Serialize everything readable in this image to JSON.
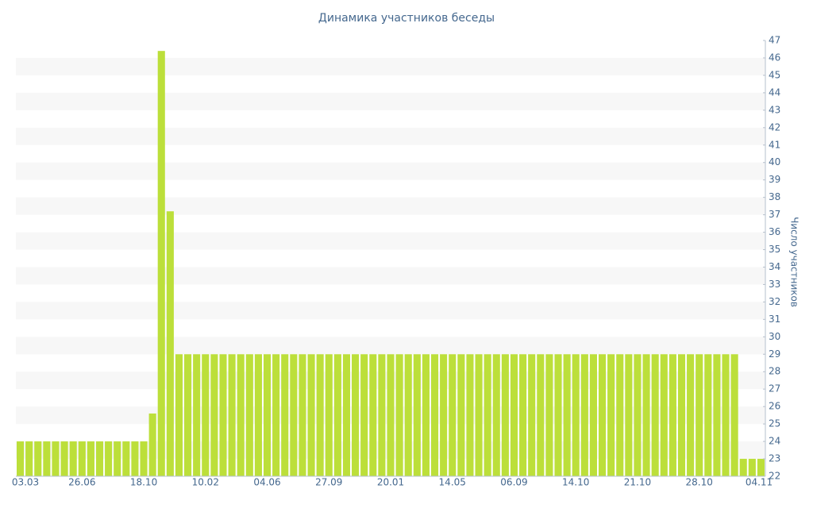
{
  "chart_data": {
    "type": "bar",
    "title": "Динамика участников беседы",
    "y_axis_label": "Число участников",
    "color": "#bcdf3a",
    "grid": true,
    "categories": [
      "03.03",
      null,
      null,
      null,
      null,
      null,
      null,
      "26.06",
      null,
      null,
      null,
      null,
      null,
      null,
      "18.10",
      null,
      null,
      null,
      null,
      null,
      null,
      "10.02",
      null,
      null,
      null,
      null,
      null,
      null,
      "04.06",
      null,
      null,
      null,
      null,
      null,
      null,
      "27.09",
      null,
      null,
      null,
      null,
      null,
      null,
      "20.01",
      null,
      null,
      null,
      null,
      null,
      null,
      "14.05",
      null,
      null,
      null,
      null,
      null,
      null,
      "06.09",
      null,
      null,
      null,
      null,
      null,
      null,
      "14.10",
      null,
      null,
      null,
      null,
      null,
      null,
      "21.10",
      null,
      null,
      null,
      null,
      null,
      null,
      "28.10",
      null,
      null,
      null,
      null,
      null,
      null,
      "04.11"
    ],
    "values": [
      24,
      24,
      24,
      24,
      24,
      24,
      24,
      24,
      24,
      24,
      24,
      24,
      24,
      24,
      24,
      25.6,
      46.4,
      37.2,
      29,
      29,
      29,
      29,
      29,
      29,
      29,
      29,
      29,
      29,
      29,
      29,
      29,
      29,
      29,
      29,
      29,
      29,
      29,
      29,
      29,
      29,
      29,
      29,
      29,
      29,
      29,
      29,
      29,
      29,
      29,
      29,
      29,
      29,
      29,
      29,
      29,
      29,
      29,
      29,
      29,
      29,
      29,
      29,
      29,
      29,
      29,
      29,
      29,
      29,
      29,
      29,
      29,
      29,
      29,
      29,
      29,
      29,
      29,
      29,
      29,
      29,
      29,
      29,
      23,
      23,
      23
    ],
    "ylim": [
      22,
      47
    ],
    "yticks": [
      22,
      23,
      24,
      25,
      26,
      27,
      28,
      29,
      30,
      31,
      32,
      33,
      34,
      35,
      36,
      37,
      38,
      39,
      40,
      41,
      42,
      43,
      44,
      45,
      46,
      47
    ]
  }
}
